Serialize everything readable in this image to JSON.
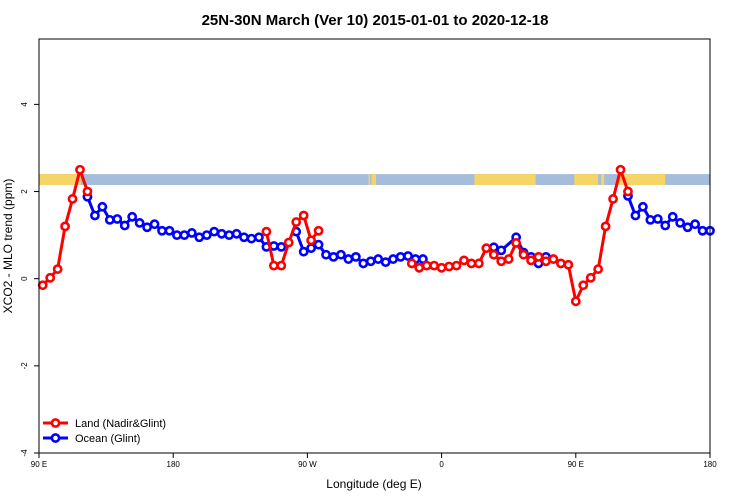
{
  "chart_data": {
    "type": "line",
    "title": "25N-30N March (Ver 10)   2015-01-01 to 2020-12-18",
    "xlabel": "Longitude (deg E)",
    "ylabel": "XCO2 - MLO trend (ppm)",
    "xlim": [
      90,
      540
    ],
    "ylim": [
      -4,
      5.5
    ],
    "x_ticks": [
      {
        "value": 90,
        "label": "90 E"
      },
      {
        "value": 180,
        "label": "180"
      },
      {
        "value": 270,
        "label": "90 W"
      },
      {
        "value": 360,
        "label": "0"
      },
      {
        "value": 450,
        "label": "90 E"
      },
      {
        "value": 540,
        "label": "180"
      }
    ],
    "y_ticks": [
      {
        "value": -4,
        "label": "-4"
      },
      {
        "value": -2,
        "label": "-2"
      },
      {
        "value": 0,
        "label": "0"
      },
      {
        "value": 2,
        "label": "2"
      },
      {
        "value": 4,
        "label": "4"
      }
    ],
    "grid": false,
    "legend_position": "bottom-left",
    "land_ocean_band": {
      "y_range": [
        2.15,
        2.4
      ],
      "ocean_color": "#a5bcdc",
      "land_color": "#f6d567",
      "land_segments": [
        [
          90,
          118
        ],
        [
          311,
          312
        ],
        [
          313,
          316
        ],
        [
          382,
          423
        ],
        [
          449,
          465
        ],
        [
          467,
          469
        ],
        [
          478,
          510
        ]
      ]
    },
    "series": [
      {
        "name": "Land (Nadir&Glint)",
        "color": "#ff0000",
        "points": [
          [
            92.5,
            -0.15
          ],
          [
            97.5,
            0.02
          ],
          [
            102.5,
            0.22
          ],
          [
            107.5,
            1.2
          ],
          [
            112.5,
            1.83
          ],
          [
            117.5,
            2.5
          ],
          [
            122.5,
            2.0
          ],
          null,
          [
            242.5,
            1.08
          ],
          [
            247.5,
            0.3
          ],
          [
            252.5,
            0.3
          ],
          [
            257.5,
            0.83
          ],
          [
            262.5,
            1.3
          ],
          [
            267.5,
            1.45
          ],
          [
            272.5,
            0.88
          ],
          [
            277.5,
            1.1
          ],
          null,
          [
            340,
            0.35
          ],
          [
            345,
            0.25
          ],
          [
            350,
            0.3
          ],
          [
            355,
            0.3
          ],
          [
            360,
            0.25
          ],
          [
            365,
            0.28
          ],
          [
            370,
            0.3
          ],
          [
            375,
            0.42
          ],
          [
            380,
            0.35
          ],
          [
            385,
            0.35
          ],
          [
            390,
            0.7
          ],
          [
            395,
            0.55
          ],
          [
            400,
            0.4
          ],
          [
            405,
            0.45
          ],
          [
            410,
            0.82
          ],
          [
            415,
            0.55
          ],
          [
            420,
            0.42
          ],
          [
            425,
            0.5
          ],
          [
            430,
            0.4
          ],
          [
            435,
            0.45
          ],
          [
            440,
            0.35
          ],
          [
            445,
            0.32
          ],
          [
            450,
            -0.52
          ],
          [
            455,
            -0.15
          ],
          [
            460,
            0.02
          ],
          [
            465,
            0.22
          ],
          [
            470,
            1.2
          ],
          [
            475,
            1.83
          ],
          [
            480,
            2.5
          ],
          [
            485,
            2.0
          ]
        ]
      },
      {
        "name": "Ocean (Glint)",
        "color": "#0000ff",
        "points": [
          [
            122.5,
            1.88
          ],
          [
            127.5,
            1.45
          ],
          [
            132.5,
            1.65
          ],
          [
            137.5,
            1.35
          ],
          [
            142.5,
            1.37
          ],
          [
            147.5,
            1.22
          ],
          [
            152.5,
            1.42
          ],
          [
            157.5,
            1.28
          ],
          [
            162.5,
            1.18
          ],
          [
            167.5,
            1.25
          ],
          [
            172.5,
            1.1
          ],
          [
            177.5,
            1.1
          ],
          [
            182.5,
            1.0
          ],
          [
            187.5,
            1.0
          ],
          [
            192.5,
            1.05
          ],
          [
            197.5,
            0.95
          ],
          [
            202.5,
            1.0
          ],
          [
            207.5,
            1.08
          ],
          [
            212.5,
            1.03
          ],
          [
            217.5,
            1.0
          ],
          [
            222.5,
            1.03
          ],
          [
            227.5,
            0.95
          ],
          [
            232.5,
            0.92
          ],
          [
            237.5,
            0.95
          ],
          [
            242.5,
            0.73
          ],
          [
            247.5,
            0.75
          ],
          [
            252.5,
            0.73
          ],
          null,
          [
            262.5,
            1.08
          ],
          [
            267.5,
            0.62
          ],
          [
            272.5,
            0.7
          ],
          [
            277.5,
            0.78
          ],
          [
            282.5,
            0.55
          ],
          [
            287.5,
            0.5
          ],
          [
            292.5,
            0.55
          ],
          [
            297.5,
            0.45
          ],
          [
            302.5,
            0.5
          ],
          [
            307.5,
            0.35
          ],
          [
            312.5,
            0.4
          ],
          [
            317.5,
            0.45
          ],
          [
            322.5,
            0.38
          ],
          [
            327.5,
            0.45
          ],
          [
            332.5,
            0.5
          ],
          [
            337.5,
            0.52
          ],
          [
            342.5,
            0.45
          ],
          [
            347.5,
            0.45
          ],
          null,
          [
            395,
            0.72
          ],
          [
            400,
            0.65
          ],
          [
            410,
            0.95
          ],
          [
            415,
            0.6
          ],
          [
            420,
            0.5
          ],
          [
            425,
            0.35
          ],
          [
            430,
            0.5
          ],
          null,
          [
            485,
            1.9
          ],
          [
            490,
            1.45
          ],
          [
            495,
            1.65
          ],
          [
            500,
            1.35
          ],
          [
            505,
            1.37
          ],
          [
            510,
            1.22
          ],
          [
            515,
            1.42
          ],
          [
            520,
            1.28
          ],
          [
            525,
            1.18
          ],
          [
            530,
            1.25
          ],
          [
            535,
            1.1
          ],
          [
            540,
            1.1
          ]
        ]
      }
    ]
  }
}
